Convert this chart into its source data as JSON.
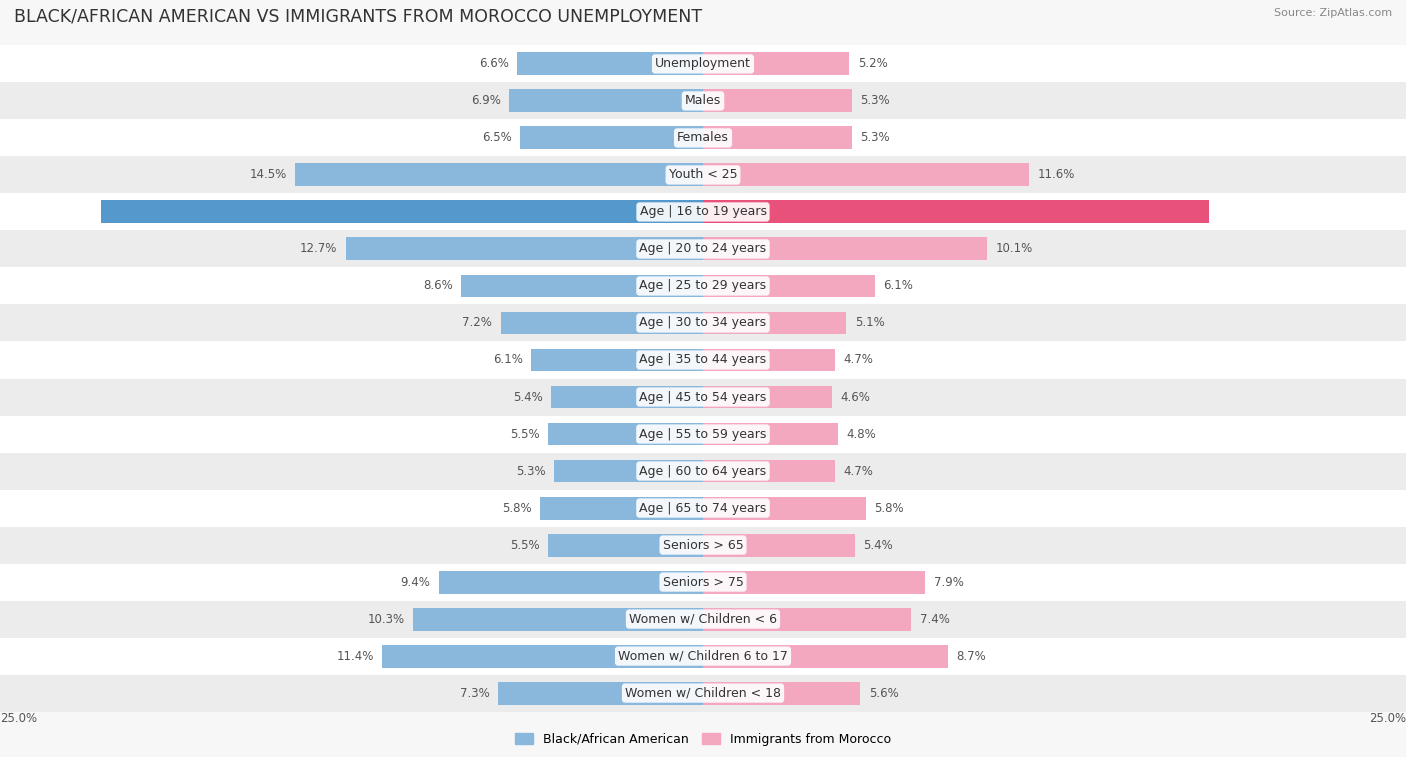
{
  "title": "BLACK/AFRICAN AMERICAN VS IMMIGRANTS FROM MOROCCO UNEMPLOYMENT",
  "source": "Source: ZipAtlas.com",
  "categories": [
    "Unemployment",
    "Males",
    "Females",
    "Youth < 25",
    "Age | 16 to 19 years",
    "Age | 20 to 24 years",
    "Age | 25 to 29 years",
    "Age | 30 to 34 years",
    "Age | 35 to 44 years",
    "Age | 45 to 54 years",
    "Age | 55 to 59 years",
    "Age | 60 to 64 years",
    "Age | 65 to 74 years",
    "Seniors > 65",
    "Seniors > 75",
    "Women w/ Children < 6",
    "Women w/ Children 6 to 17",
    "Women w/ Children < 18"
  ],
  "left_values": [
    6.6,
    6.9,
    6.5,
    14.5,
    21.4,
    12.7,
    8.6,
    7.2,
    6.1,
    5.4,
    5.5,
    5.3,
    5.8,
    5.5,
    9.4,
    10.3,
    11.4,
    7.3
  ],
  "right_values": [
    5.2,
    5.3,
    5.3,
    11.6,
    18.0,
    10.1,
    6.1,
    5.1,
    4.7,
    4.6,
    4.8,
    4.7,
    5.8,
    5.4,
    7.9,
    7.4,
    8.7,
    5.6
  ],
  "left_color": "#89b8dc",
  "left_color_highlight": "#5599cc",
  "right_color": "#f4a8bf",
  "right_color_highlight": "#e8527a",
  "max_value": 25.0,
  "legend_left": "Black/African American",
  "legend_right": "Immigrants from Morocco",
  "bg_color": "#f7f7f7",
  "row_bg_even": "#ffffff",
  "row_bg_odd": "#ececec",
  "title_fontsize": 12.5,
  "label_fontsize": 9,
  "value_fontsize": 8.5
}
